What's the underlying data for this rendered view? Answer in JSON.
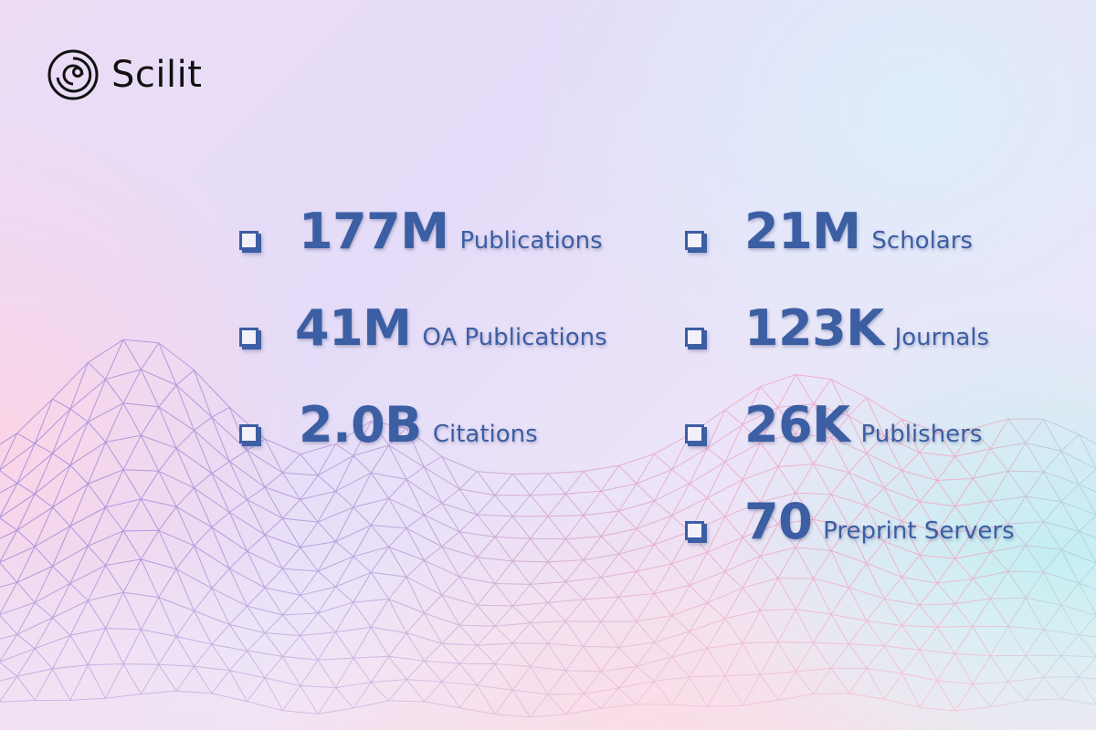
{
  "brand": {
    "name": "Scilit"
  },
  "stats": {
    "left": [
      {
        "value": "177M",
        "label": "Publications"
      },
      {
        "value": "41M",
        "label": "OA Publications"
      },
      {
        "value": "2.0B",
        "label": "Citations"
      }
    ],
    "right": [
      {
        "value": "21M",
        "label": "Scholars"
      },
      {
        "value": "123K",
        "label": "Journals"
      },
      {
        "value": "26K",
        "label": "Publishers"
      },
      {
        "value": "70",
        "label": "Preprint Servers"
      }
    ]
  },
  "colors": {
    "accent": "#3c5ea3",
    "mesh_left": "#9a86d8",
    "mesh_right": "#f2a7c2",
    "mesh_far_right": "#8fe0e6"
  }
}
